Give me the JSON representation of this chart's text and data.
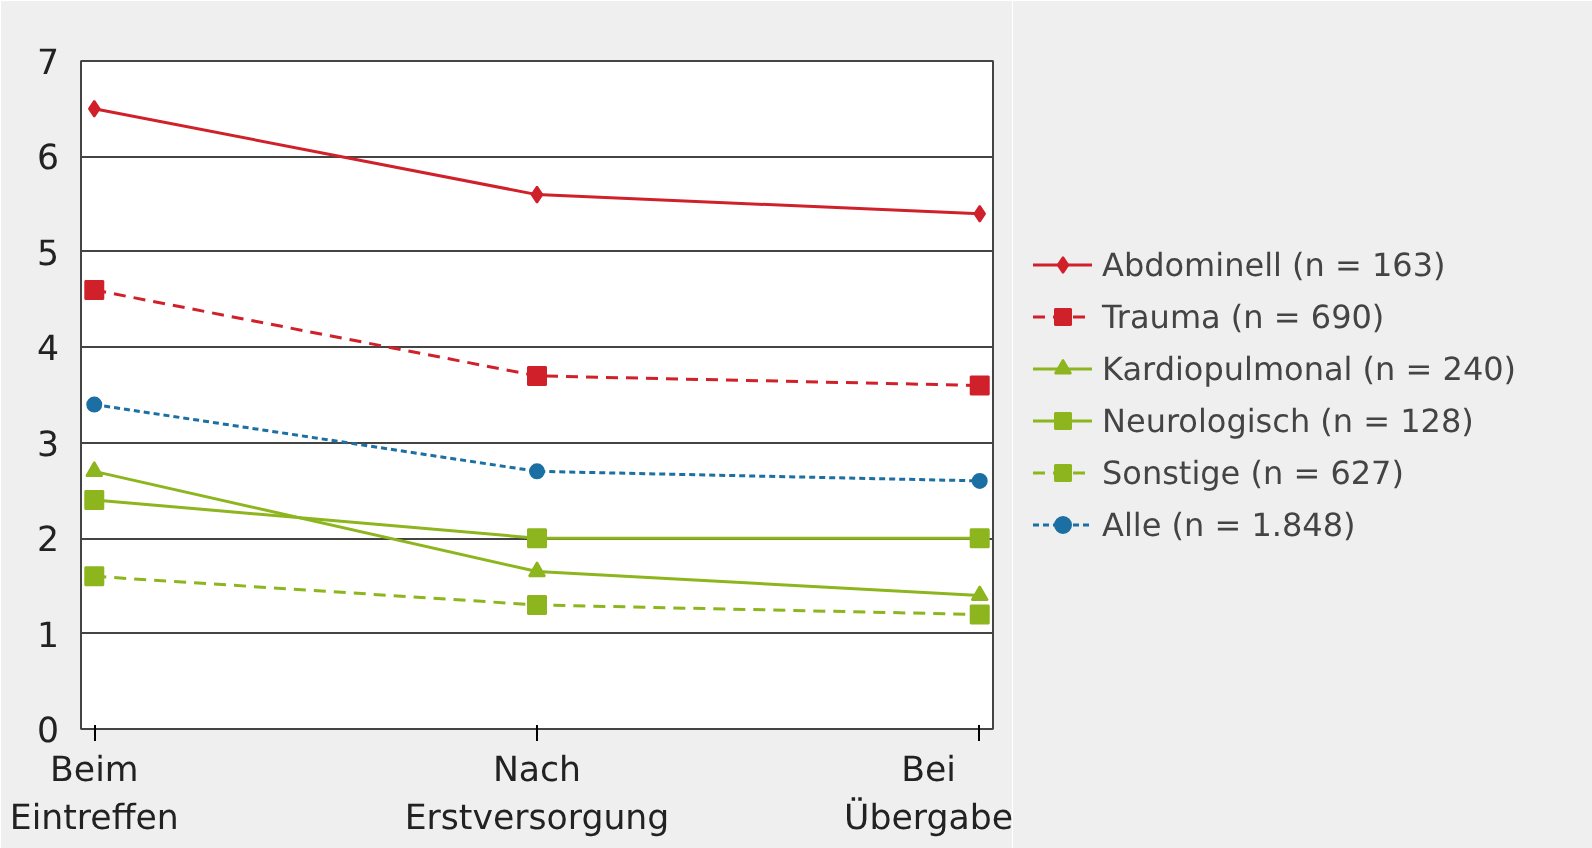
{
  "chart_data": {
    "type": "line",
    "categories": [
      "Beim\nEintreffen",
      "Nach\nErstversorgung",
      "Bei\nÜbergabe"
    ],
    "ylim": [
      0,
      7
    ],
    "yticks": [
      0,
      1,
      2,
      3,
      4,
      5,
      6,
      7
    ],
    "grid": "y",
    "legend": "right",
    "series": [
      {
        "name": "Abdominell (n = 163)",
        "color": "#d0202a",
        "marker": "diamond",
        "line_style": "solid",
        "values": [
          6.5,
          5.6,
          5.4
        ]
      },
      {
        "name": "Trauma (n = 690)",
        "color": "#d0202a",
        "marker": "square",
        "line_style": "dashed",
        "values": [
          4.6,
          3.7,
          3.6
        ]
      },
      {
        "name": "Kardiopulmonal (n = 240)",
        "color": "#8db51e",
        "marker": "triangle",
        "line_style": "solid",
        "values": [
          2.7,
          1.65,
          1.4
        ]
      },
      {
        "name": "Neurologisch (n = 128)",
        "color": "#8db51e",
        "marker": "square",
        "line_style": "solid",
        "values": [
          2.4,
          2.0,
          2.0
        ]
      },
      {
        "name": "Sonstige (n = 627)",
        "color": "#8db51e",
        "marker": "square",
        "line_style": "dashed",
        "values": [
          1.6,
          1.3,
          1.2
        ]
      },
      {
        "name": "Alle (n = 1.848)",
        "color": "#1b6fa3",
        "marker": "circle",
        "line_style": "dotted",
        "values": [
          3.4,
          2.7,
          2.6
        ]
      }
    ]
  }
}
